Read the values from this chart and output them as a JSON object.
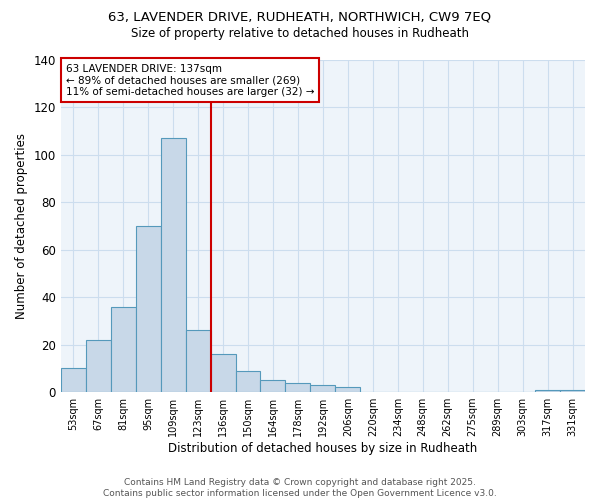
{
  "title_line1": "63, LAVENDER DRIVE, RUDHEATH, NORTHWICH, CW9 7EQ",
  "title_line2": "Size of property relative to detached houses in Rudheath",
  "xlabel": "Distribution of detached houses by size in Rudheath",
  "ylabel": "Number of detached properties",
  "bar_labels": [
    "53sqm",
    "67sqm",
    "81sqm",
    "95sqm",
    "109sqm",
    "123sqm",
    "136sqm",
    "150sqm",
    "164sqm",
    "178sqm",
    "192sqm",
    "206sqm",
    "220sqm",
    "234sqm",
    "248sqm",
    "262sqm",
    "275sqm",
    "289sqm",
    "303sqm",
    "317sqm",
    "331sqm"
  ],
  "bar_heights": [
    10,
    22,
    36,
    70,
    107,
    26,
    16,
    9,
    5,
    4,
    3,
    2,
    0,
    0,
    0,
    0,
    0,
    0,
    0,
    1,
    1
  ],
  "bar_color": "#c8d8e8",
  "bar_edge_color": "#5599bb",
  "grid_color": "#ccddee",
  "background_color": "#eef4fa",
  "vline_color": "#cc0000",
  "annotation_line1": "63 LAVENDER DRIVE: 137sqm",
  "annotation_line2": "← 89% of detached houses are smaller (269)",
  "annotation_line3": "11% of semi-detached houses are larger (32) →",
  "annotation_box_color": "#ffffff",
  "annotation_box_edge": "#cc0000",
  "ylim": [
    0,
    140
  ],
  "yticks": [
    0,
    20,
    40,
    60,
    80,
    100,
    120,
    140
  ],
  "footer_line1": "Contains HM Land Registry data © Crown copyright and database right 2025.",
  "footer_line2": "Contains public sector information licensed under the Open Government Licence v3.0."
}
